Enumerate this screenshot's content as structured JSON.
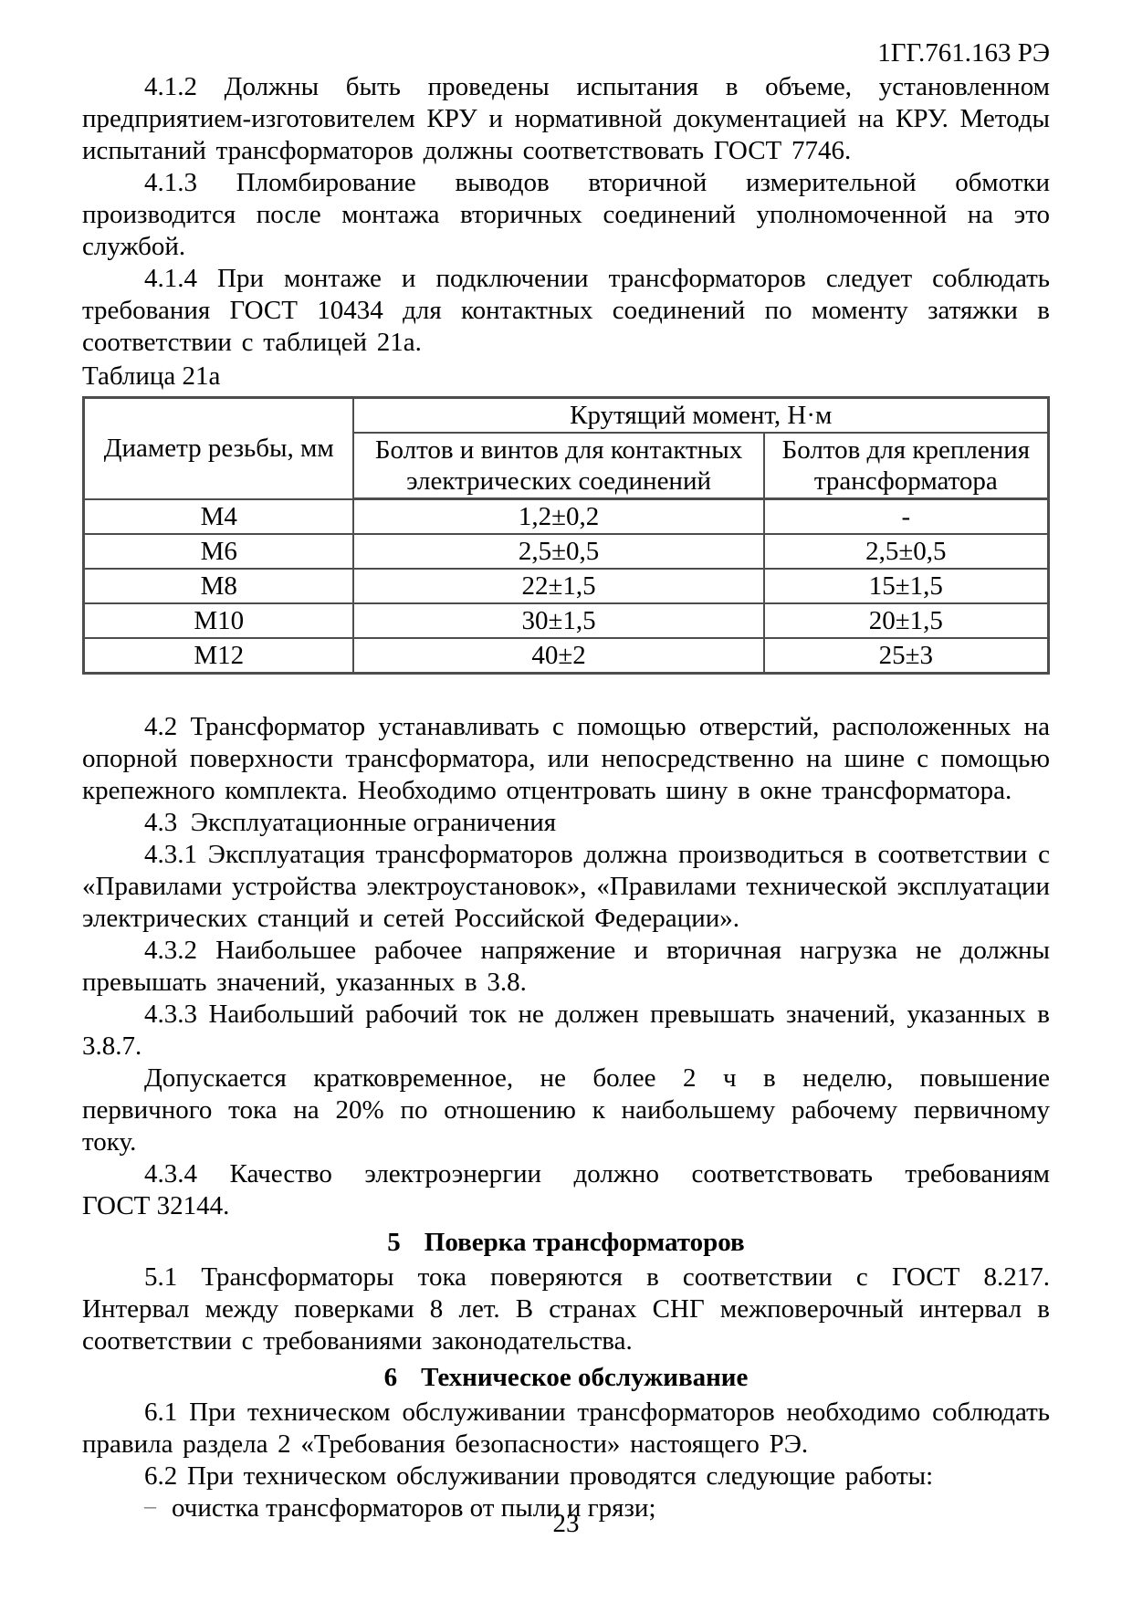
{
  "header": {
    "doc_code": "1ГГ.761.163 РЭ"
  },
  "paragraphs": {
    "p412": "4.1.2 Должны быть проведены испытания в объеме, установленном предприятием-изготовителем КРУ и нормативной документацией на КРУ. Методы испытаний трансформаторов должны соответствовать ГОСТ 7746.",
    "p413": "4.1.3 Пломбирование выводов вторичной измерительной обмотки производится после монтажа вторичных соединений уполномоченной на это службой.",
    "p414": "4.1.4 При монтаже и подключении трансформаторов следует соблюдать требования ГОСТ 10434 для контактных соединений по моменту затяжки в соответствии с таблицей 21а.",
    "p42": "4.2 Трансформатор устанавливать с помощью отверстий, расположенных на опорной поверхности трансформатора, или непосредственно на шине с помощью крепежного комплекта. Необходимо отцентровать шину в окне трансформатора.",
    "p43_heading": "4.3  Эксплуатационные ограничения",
    "p431": "4.3.1 Эксплуатация трансформаторов должна производиться в соответствии с «Правилами устройства электроустановок», «Правилами технической эксплуатации электрических станций и сетей Российской Федерации».",
    "p432": "4.3.2 Наибольшее рабочее напряжение и вторичная нагрузка не должны превышать значений, указанных в 3.8.",
    "p433_line1": "4.3.3 Наибольший рабочий ток не должен превышать значений, указанных в",
    "p433_line2": "3.8.7.",
    "p_dopusk": "Допускается кратковременное, не более 2 ч в неделю, повышение первичного тока на 20% по отношению к наибольшему рабочему первичному току.",
    "p434_line1": "4.3.4 Качество электроэнергии должно соответствовать требованиям",
    "p434_line2": "ГОСТ 32144.",
    "p51": "5.1 Трансформаторы тока поверяются в соответствии с ГОСТ 8.217. Интервал между поверками 8 лет. В странах СНГ межповерочный интервал в соответствии с требованиями законодательства.",
    "p61": "6.1 При техническом обслуживании трансформаторов необходимо соблюдать правила раздела 2 «Требования безопасности» настоящего РЭ.",
    "p62": "6.2 При техническом обслуживании проводятся следующие работы:"
  },
  "sections": {
    "s5": {
      "number": "5",
      "title": "Поверка трансформаторов"
    },
    "s6": {
      "number": "6",
      "title": "Техническое обслуживание"
    }
  },
  "table": {
    "caption": "Таблица 21а",
    "diameter_header": "Диаметр резьбы, мм",
    "torque_header": "Крутящий момент, Н·м",
    "sub_headers": [
      "Болтов и винтов для контактных электрических соединений",
      "Болтов для крепления трансформатора"
    ],
    "rows": [
      {
        "diameter": "М4",
        "contact": "1,2±0,2",
        "mount": "-"
      },
      {
        "diameter": "М6",
        "contact": "2,5±0,5",
        "mount": "2,5±0,5"
      },
      {
        "diameter": "М8",
        "contact": "22±1,5",
        "mount": "15±1,5"
      },
      {
        "diameter": "М10",
        "contact": "30±1,5",
        "mount": "20±1,5"
      },
      {
        "diameter": "М12",
        "contact": "40±2",
        "mount": "25±3"
      }
    ]
  },
  "list": {
    "marker": "–",
    "items": [
      "очистка трансформаторов от пыли и грязи;"
    ]
  },
  "footer": {
    "page_number": "23"
  }
}
